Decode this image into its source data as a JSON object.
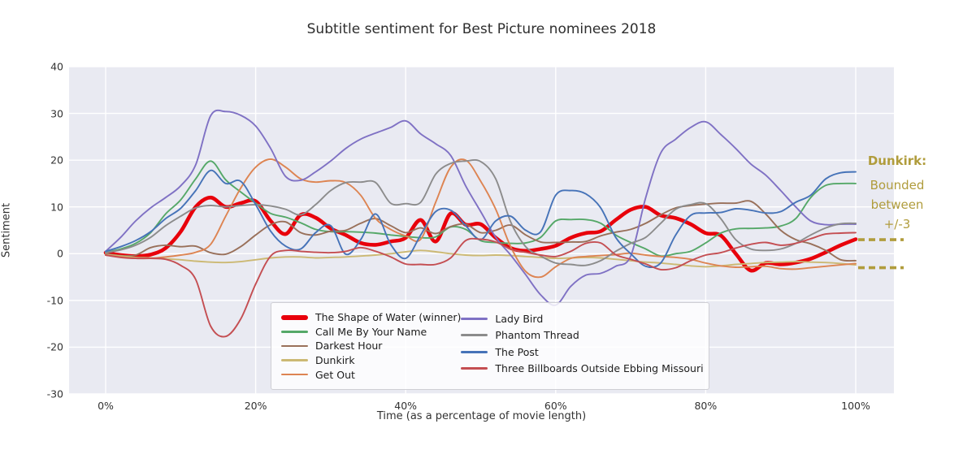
{
  "title": "Subtitle sentiment for Best Picture nominees 2018",
  "axes": {
    "xlabel": "Time (as a percentage of movie length)",
    "ylabel": "Sentiment",
    "x_ticks": [
      "0%",
      "20%",
      "40%",
      "60%",
      "80%",
      "100%"
    ],
    "x_tick_values": [
      0,
      20,
      40,
      60,
      80,
      100
    ],
    "y_ticks": [
      "40",
      "30",
      "20",
      "10",
      "0",
      "-10",
      "-20",
      "-30"
    ],
    "y_tick_values": [
      40,
      30,
      20,
      10,
      0,
      -10,
      -20,
      -30
    ]
  },
  "style": {
    "plot_background": "#e9eaf2",
    "grid_color": "#ffffff",
    "annotation_color": "#b09c3c"
  },
  "annotation": {
    "heading": "Dunkirk:",
    "lines": [
      "Bounded",
      "between",
      "+/-3"
    ],
    "upper_bound": 3,
    "lower_bound": -3
  },
  "chart_data": {
    "type": "line",
    "title": "Subtitle sentiment for Best Picture nominees 2018",
    "xlabel": "Time (as a percentage of movie length)",
    "ylabel": "Sentiment",
    "xlim": [
      -5,
      105
    ],
    "ylim": [
      -30,
      40
    ],
    "grid": true,
    "legend_position": "lower center, two columns",
    "x": [
      0,
      2,
      4,
      6,
      8,
      10,
      12,
      14,
      16,
      18,
      20,
      22,
      24,
      26,
      28,
      30,
      32,
      34,
      36,
      38,
      40,
      42,
      44,
      46,
      48,
      50,
      52,
      54,
      56,
      58,
      60,
      62,
      64,
      66,
      68,
      70,
      72,
      74,
      76,
      78,
      80,
      82,
      84,
      86,
      88,
      90,
      92,
      94,
      96,
      98,
      100
    ],
    "series": [
      {
        "name": "The Shape of Water (winner)",
        "color": "#e8000b",
        "width": 4.6,
        "values": [
          0.2,
          -0.3,
          -0.5,
          -0.2,
          1.2,
          4.7,
          10,
          12,
          10,
          10.8,
          11.2,
          7,
          4.2,
          8.3,
          7.7,
          5.4,
          4,
          2.3,
          1.9,
          2.6,
          3.4,
          7.2,
          2.6,
          8.6,
          6.2,
          6.3,
          3.4,
          1.2,
          0.6,
          1,
          1.7,
          3.4,
          4.4,
          4.8,
          7.2,
          9.4,
          10,
          8.2,
          7.6,
          6.3,
          4.4,
          3.9,
          0,
          -3.6,
          -2,
          -2.3,
          -1.9,
          -1.1,
          0.3,
          1.8,
          3.1
        ]
      },
      {
        "name": "Call Me By Your Name",
        "color": "#55a868",
        "width": 1.9,
        "values": [
          0.3,
          1,
          2.2,
          4.5,
          8.5,
          11.5,
          16,
          19.8,
          15.8,
          13.2,
          10.8,
          8.6,
          7.8,
          6.6,
          5.2,
          4.7,
          4.7,
          4.6,
          4.4,
          4,
          3.7,
          3.4,
          3.6,
          5.7,
          5.2,
          2.8,
          2.4,
          2.2,
          2.3,
          3.5,
          7,
          7.3,
          7.3,
          6.5,
          4,
          2.4,
          1,
          -0.5,
          0,
          0.5,
          2.3,
          4.4,
          5.3,
          5.4,
          5.5,
          5.9,
          7.5,
          12,
          14.6,
          15,
          15
        ]
      },
      {
        "name": "Darkest Hour",
        "color": "#99705a",
        "width": 1.9,
        "values": [
          0,
          -0.4,
          -0.3,
          1.3,
          1.8,
          1.5,
          1.6,
          0.2,
          -0.1,
          1.5,
          4,
          6.2,
          6.8,
          4.5,
          4,
          4.8,
          5,
          6.5,
          7.5,
          6,
          4.5,
          5.5,
          4.3,
          5.8,
          6.3,
          4.5,
          5,
          6.1,
          4,
          2.5,
          2.4,
          2.5,
          2.6,
          3.8,
          4.6,
          5.2,
          6.5,
          8.3,
          9.8,
          10.3,
          10.6,
          10.8,
          10.8,
          11.2,
          8.5,
          5,
          3,
          2.1,
          0.7,
          -1.3,
          -1.5
        ]
      },
      {
        "name": "Dunkirk",
        "color": "#ccb974",
        "width": 1.9,
        "values": [
          -0.2,
          -0.5,
          -0.8,
          -0.9,
          -1.1,
          -1.3,
          -1.6,
          -1.8,
          -1.9,
          -1.7,
          -1.3,
          -0.9,
          -0.7,
          -0.7,
          -0.9,
          -0.8,
          -0.7,
          -0.5,
          -0.3,
          0,
          0.4,
          0.7,
          0.4,
          0,
          -0.3,
          -0.4,
          -0.3,
          -0.4,
          -0.6,
          -0.8,
          -1,
          -0.9,
          -0.8,
          -0.9,
          -1.2,
          -1.5,
          -1.8,
          -2,
          -2.3,
          -2.6,
          -2.8,
          -2.6,
          -2.3,
          -2.1,
          -1.9,
          -1.8,
          -1.7,
          -1.8,
          -1.9,
          -2.1,
          -2.4
        ]
      },
      {
        "name": "Get Out",
        "color": "#dd8452",
        "width": 1.9,
        "values": [
          -0.3,
          -0.7,
          -1,
          -1,
          -0.7,
          -0.3,
          0.3,
          2,
          8,
          14,
          18.5,
          20.2,
          18.5,
          16,
          15.3,
          15.6,
          15.2,
          12.5,
          7.5,
          5.2,
          3.8,
          3.1,
          11,
          18.5,
          20,
          15.5,
          9.5,
          1.5,
          -3.8,
          -5,
          -2.8,
          -1,
          -0.6,
          -0.4,
          -0.2,
          0.1,
          -0.3,
          -0.6,
          -0.8,
          -1.2,
          -2,
          -2.6,
          -2.9,
          -2.8,
          -2.7,
          -3.2,
          -3.3,
          -3,
          -2.7,
          -2.4,
          -2.1
        ]
      },
      {
        "name": "Lady Bird",
        "color": "#7f71c4",
        "width": 1.9,
        "values": [
          0.5,
          3.5,
          7,
          9.8,
          12,
          14.5,
          19,
          29.5,
          30.4,
          29.6,
          27.3,
          22.5,
          16.5,
          15.7,
          17.5,
          19.8,
          22.5,
          24.5,
          25.8,
          27,
          28.4,
          25.6,
          23.5,
          21,
          14.5,
          9,
          3.5,
          -0.3,
          -4.5,
          -8.8,
          -11,
          -7,
          -4.6,
          -4.2,
          -2.7,
          -0.5,
          12,
          21.5,
          24.5,
          27,
          28.2,
          25.5,
          22.5,
          19.2,
          16.8,
          13.5,
          10,
          7,
          6.2,
          6.3,
          6.3
        ]
      },
      {
        "name": "Phantom Thread",
        "color": "#8c8c8c",
        "width": 1.9,
        "values": [
          0.2,
          0.8,
          1.8,
          3.5,
          6,
          8,
          9.8,
          10.3,
          10,
          10.3,
          10.5,
          10.2,
          9.5,
          8.3,
          10.5,
          13.5,
          15.2,
          15.3,
          15.2,
          10.8,
          10.7,
          11,
          17,
          19.3,
          19.8,
          19.7,
          16,
          6.8,
          1.5,
          -0.5,
          -2,
          -2.3,
          -2.5,
          -1.5,
          0.5,
          2.2,
          3.5,
          6.5,
          9.5,
          10.5,
          10.7,
          7.5,
          3,
          1,
          0.7,
          1,
          2.2,
          4,
          5.5,
          6.4,
          6.5
        ]
      },
      {
        "name": "The Post",
        "color": "#4673b8",
        "width": 1.9,
        "values": [
          0.5,
          1.5,
          2.8,
          4.7,
          7.5,
          9.7,
          13.5,
          17.8,
          15,
          15.5,
          10.5,
          4.8,
          1.6,
          1,
          4.5,
          6,
          -0.1,
          3,
          8.5,
          2,
          -1,
          4,
          9,
          9.3,
          6,
          3,
          7,
          8,
          5,
          4.7,
          12.5,
          13.5,
          12.8,
          9.8,
          3.5,
          0,
          -2.7,
          -2,
          4,
          8.2,
          8.7,
          8.8,
          9.6,
          9.3,
          8.7,
          9,
          11,
          12.5,
          16,
          17.3,
          17.5
        ]
      },
      {
        "name": "Three Billboards Outside Ebbing Missouri",
        "color": "#c44e52",
        "width": 1.9,
        "values": [
          -0.3,
          -0.8,
          -1,
          -1,
          -1.2,
          -2.5,
          -5.5,
          -15.5,
          -17.7,
          -14,
          -6.5,
          -0.5,
          0.7,
          0.5,
          0.3,
          0.2,
          0.5,
          1.3,
          0.5,
          -0.7,
          -2.2,
          -2.3,
          -2.3,
          -0.9,
          2.8,
          3.1,
          2.5,
          1,
          0.3,
          -0.3,
          -0.6,
          0.5,
          2.2,
          2.3,
          -0.2,
          -1.2,
          -2.2,
          -3.4,
          -3,
          -1.5,
          -0.3,
          0.2,
          1.2,
          2,
          2.4,
          1.8,
          2.2,
          3.2,
          4.2,
          4.4,
          4.5
        ]
      }
    ],
    "annotation": {
      "text": "Dunkirk: Bounded between +/-3",
      "bounds": [
        3,
        -3
      ]
    }
  }
}
